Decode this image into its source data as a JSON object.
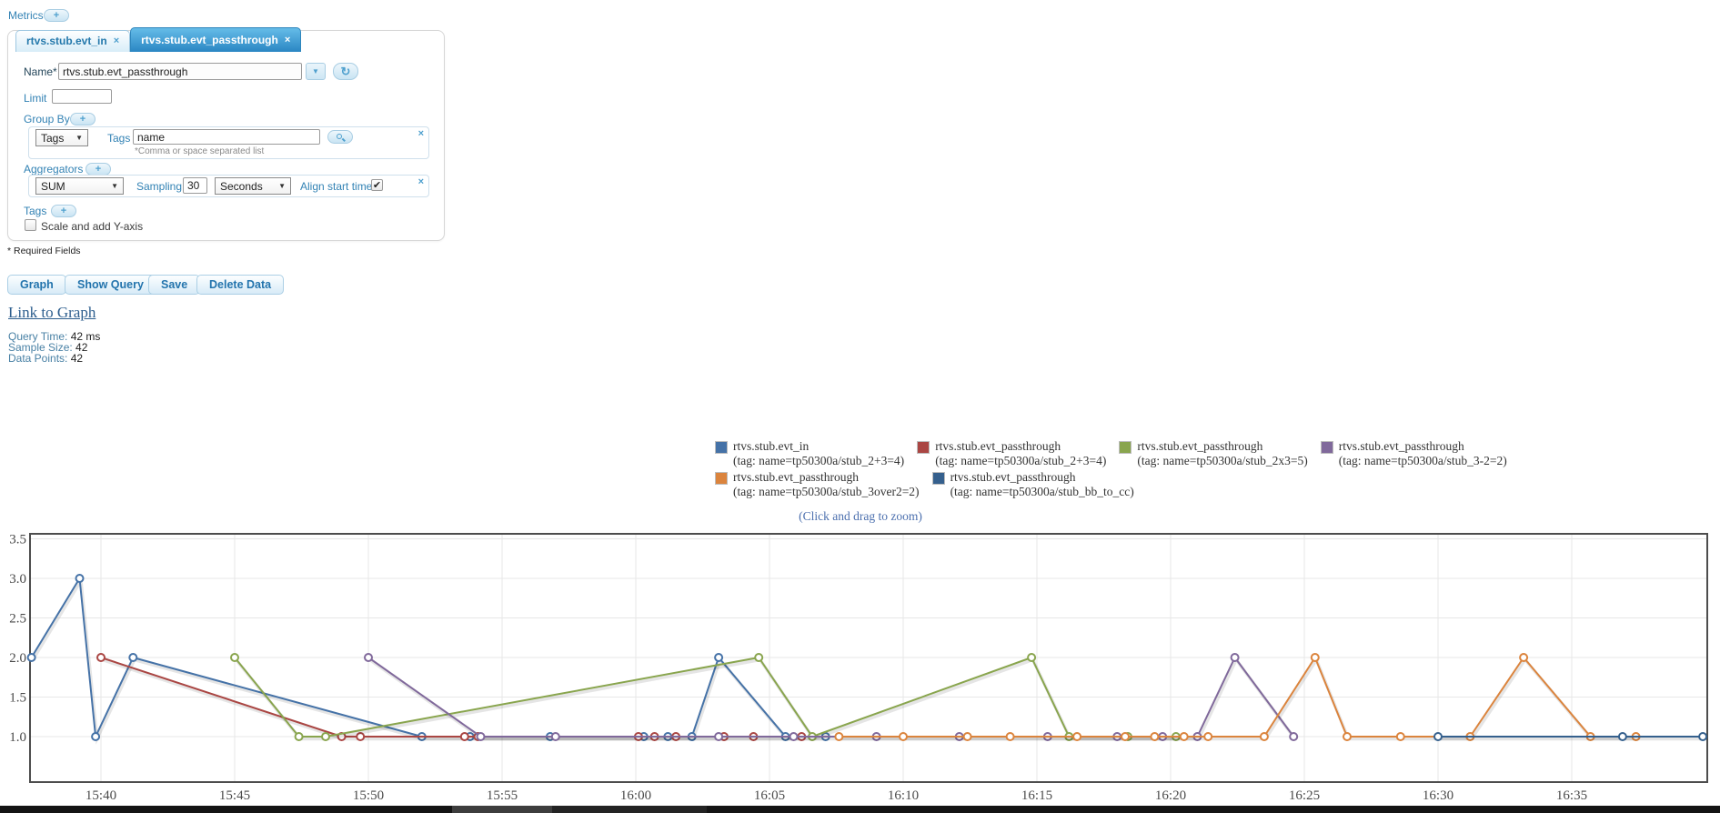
{
  "icons": {
    "add": "+",
    "close": "×",
    "dropdown_arrow": "▼",
    "refresh": "↻",
    "check": "✔"
  },
  "header": {
    "metrics_label": "Metrics"
  },
  "tabs": [
    {
      "label": "rtvs.stub.evt_in",
      "active": false
    },
    {
      "label": "rtvs.stub.evt_passthrough",
      "active": true
    }
  ],
  "form": {
    "name_label": "Name*",
    "name_value": "rtvs.stub.evt_passthrough",
    "limit_label": "Limit",
    "limit_value": "",
    "group_by": {
      "label": "Group By",
      "type_selected": "Tags",
      "tags_label": "Tags",
      "tags_value": "name",
      "helper": "*Comma or space separated list"
    },
    "aggregators": {
      "label": "Aggregators",
      "aggregator_selected": "SUM",
      "sampling_label": "Sampling",
      "sampling_value": "30",
      "unit_selected": "Seconds",
      "align_label": "Align start time",
      "align_checked": true
    },
    "tags_label": "Tags",
    "scale_label": "Scale and add Y-axis",
    "scale_checked": false,
    "required_note": "* Required Fields"
  },
  "actions": {
    "graph": "Graph",
    "show_query": "Show Query",
    "save": "Save",
    "delete": "Delete Data"
  },
  "link_to_graph": "Link to Graph",
  "stats": {
    "query_time_label": "Query Time:",
    "query_time_value": "42 ms",
    "sample_size_label": "Sample Size:",
    "sample_size_value": "42",
    "data_points_label": "Data Points:",
    "data_points_value": "42"
  },
  "chart_data": {
    "type": "line",
    "hint": "(Click and drag to zoom)",
    "time_unit": "minutes after 15:00",
    "x_axis": {
      "tick_labels": [
        "15:40",
        "15:45",
        "15:50",
        "15:55",
        "16:00",
        "16:05",
        "16:10",
        "16:15",
        "16:20",
        "16:25",
        "16:30",
        "16:35"
      ],
      "tick_minutes": [
        40,
        45,
        50,
        55,
        60,
        65,
        70,
        75,
        80,
        85,
        90,
        95
      ],
      "range_minutes": [
        37.3,
        100.1
      ]
    },
    "y_axis": {
      "tick_labels": [
        "3.5",
        "3.0",
        "2.5",
        "2.0",
        "1.5",
        "1.0"
      ],
      "tick_values": [
        3.5,
        3.0,
        2.5,
        2.0,
        1.5,
        1.0
      ],
      "range": [
        0.44,
        3.56
      ]
    },
    "series": [
      {
        "name": "rtvs.stub.evt_in",
        "tag": "(tag: name=tp50300a/stub_2+3=4)",
        "color": "#4572A7",
        "points": [
          [
            37.4,
            2
          ],
          [
            39.2,
            3
          ],
          [
            39.8,
            1
          ],
          [
            41.2,
            2
          ],
          [
            52,
            1
          ],
          [
            53.8,
            1
          ],
          [
            56.8,
            1
          ],
          [
            60.3,
            1
          ],
          [
            61.2,
            1
          ],
          [
            62.1,
            1
          ],
          [
            63.1,
            2
          ],
          [
            65.6,
            1
          ],
          [
            67.1,
            1
          ]
        ]
      },
      {
        "name": "rtvs.stub.evt_passthrough",
        "tag": "(tag: name=tp50300a/stub_2+3=4)",
        "color": "#AA4643",
        "points": [
          [
            40,
            2
          ],
          [
            49,
            1
          ],
          [
            49.7,
            1
          ],
          [
            53.6,
            1
          ],
          [
            54.1,
            1
          ],
          [
            60.1,
            1
          ],
          [
            60.7,
            1
          ],
          [
            61.5,
            1
          ],
          [
            63.3,
            1
          ],
          [
            64.4,
            1
          ],
          [
            66.2,
            1
          ]
        ]
      },
      {
        "name": "rtvs.stub.evt_passthrough",
        "tag": "(tag: name=tp50300a/stub_2x3=5)",
        "color": "#89A54E",
        "points": [
          [
            45,
            2
          ],
          [
            47.4,
            1
          ],
          [
            48.4,
            1
          ],
          [
            64.6,
            2
          ],
          [
            66.6,
            1
          ],
          [
            74.8,
            2
          ],
          [
            76.2,
            1
          ],
          [
            78.4,
            1
          ],
          [
            80.2,
            1
          ]
        ]
      },
      {
        "name": "rtvs.stub.evt_passthrough",
        "tag": "(tag: name=tp50300a/stub_3-2=2)",
        "color": "#80699B",
        "points": [
          [
            50,
            2
          ],
          [
            54.2,
            1
          ],
          [
            57,
            1
          ],
          [
            63.1,
            1
          ],
          [
            65.9,
            1
          ],
          [
            69,
            1
          ],
          [
            72.1,
            1
          ],
          [
            75.4,
            1
          ],
          [
            78,
            1
          ],
          [
            79.7,
            1
          ],
          [
            81,
            1
          ],
          [
            82.4,
            2
          ],
          [
            84.6,
            1
          ]
        ]
      },
      {
        "name": "rtvs.stub.evt_passthrough",
        "tag": "(tag: name=tp50300a/stub_3over2=2)",
        "color": "#DB843D",
        "points": [
          [
            67.6,
            1
          ],
          [
            70,
            1
          ],
          [
            72.4,
            1
          ],
          [
            74,
            1
          ],
          [
            76.5,
            1
          ],
          [
            78.3,
            1
          ],
          [
            79.4,
            1
          ],
          [
            80.5,
            1
          ],
          [
            81.4,
            1
          ],
          [
            83.5,
            1
          ],
          [
            85.4,
            2
          ],
          [
            86.6,
            1
          ],
          [
            88.6,
            1
          ],
          [
            91.2,
            1
          ],
          [
            93.2,
            2
          ],
          [
            95.7,
            1
          ],
          [
            97.4,
            1
          ]
        ]
      },
      {
        "name": "rtvs.stub.evt_passthrough",
        "tag": "(tag: name=tp50300a/stub_bb_to_cc)",
        "color": "#35608D",
        "points": [
          [
            90,
            1
          ],
          [
            96.9,
            1
          ],
          [
            99.9,
            1
          ]
        ]
      }
    ]
  }
}
